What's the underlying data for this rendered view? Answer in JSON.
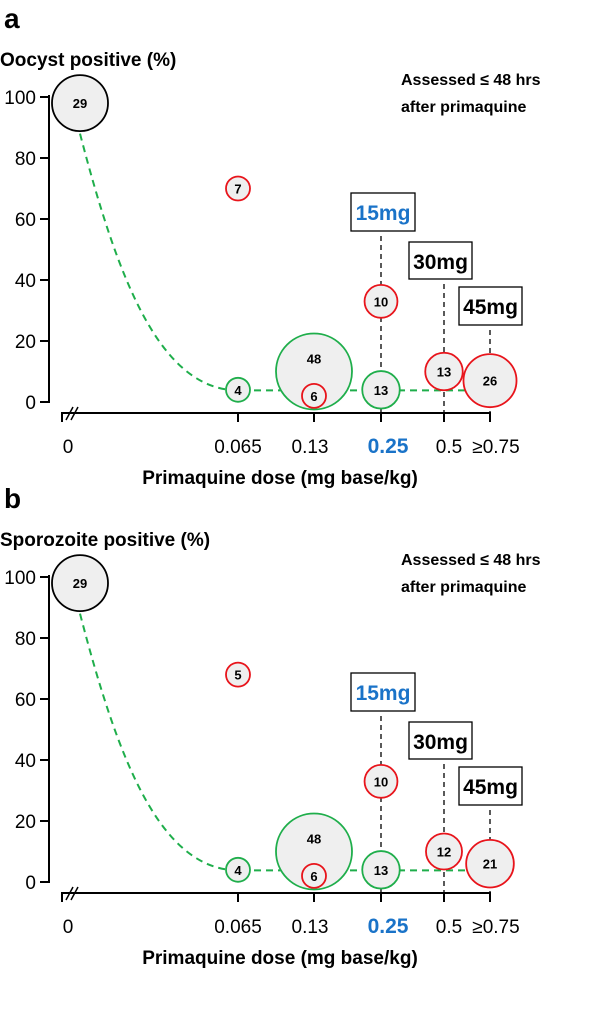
{
  "chart_data": [
    {
      "type": "scatter",
      "panel_label": "a",
      "ylabel": "Oocyst positive (%)",
      "xlabel": "Primaquine dose (mg base/kg)",
      "annotation": [
        "Assessed ≤ 48 hrs",
        "after primaquine"
      ],
      "ylim": [
        0,
        100
      ],
      "yticks": [
        "0",
        "20",
        "40",
        "60",
        "80",
        "100"
      ],
      "xticks": [
        "0",
        "0.065",
        "0.13",
        "0.25",
        "0.5",
        "≥0.75"
      ],
      "highlight_tick": "0.25",
      "dose_labels": [
        {
          "text": "15mg",
          "x": "0.25",
          "color": "#1a73c8"
        },
        {
          "text": "30mg",
          "x": "0.5",
          "color": "#000000"
        },
        {
          "text": "45mg",
          "x": "≥0.75",
          "color": "#000000"
        }
      ],
      "points": [
        {
          "x": "0",
          "y": 98,
          "n": "29",
          "group": "control"
        },
        {
          "x": "0.065",
          "y": 70,
          "n": "7",
          "group": "red"
        },
        {
          "x": "0.065",
          "y": 4,
          "n": "4",
          "group": "green"
        },
        {
          "x": "0.13",
          "y": 10,
          "n": "48",
          "group": "green"
        },
        {
          "x": "0.13",
          "y": 2,
          "n": "6",
          "group": "red"
        },
        {
          "x": "0.25",
          "y": 33,
          "n": "10",
          "group": "red"
        },
        {
          "x": "0.25",
          "y": 4,
          "n": "13",
          "group": "green"
        },
        {
          "x": "0.5",
          "y": 10,
          "n": "13",
          "group": "red"
        },
        {
          "x": "≥0.75",
          "y": 7,
          "n": "26",
          "group": "red"
        }
      ]
    },
    {
      "type": "scatter",
      "panel_label": "b",
      "ylabel": "Sporozoite positive (%)",
      "xlabel": "Primaquine dose (mg base/kg)",
      "annotation": [
        "Assessed ≤ 48 hrs",
        "after primaquine"
      ],
      "ylim": [
        0,
        100
      ],
      "yticks": [
        "0",
        "20",
        "40",
        "60",
        "80",
        "100"
      ],
      "xticks": [
        "0",
        "0.065",
        "0.13",
        "0.25",
        "0.5",
        "≥0.75"
      ],
      "highlight_tick": "0.25",
      "dose_labels": [
        {
          "text": "15mg",
          "x": "0.25",
          "color": "#1a73c8"
        },
        {
          "text": "30mg",
          "x": "0.5",
          "color": "#000000"
        },
        {
          "text": "45mg",
          "x": "≥0.75",
          "color": "#000000"
        }
      ],
      "points": [
        {
          "x": "0",
          "y": 98,
          "n": "29",
          "group": "control"
        },
        {
          "x": "0.065",
          "y": 68,
          "n": "5",
          "group": "red"
        },
        {
          "x": "0.065",
          "y": 4,
          "n": "4",
          "group": "green"
        },
        {
          "x": "0.13",
          "y": 10,
          "n": "48",
          "group": "green"
        },
        {
          "x": "0.13",
          "y": 2,
          "n": "6",
          "group": "red"
        },
        {
          "x": "0.25",
          "y": 33,
          "n": "10",
          "group": "red"
        },
        {
          "x": "0.25",
          "y": 4,
          "n": "13",
          "group": "green"
        },
        {
          "x": "0.5",
          "y": 10,
          "n": "12",
          "group": "red"
        },
        {
          "x": "≥0.75",
          "y": 6,
          "n": "21",
          "group": "red"
        }
      ]
    }
  ],
  "colors": {
    "control": "#000000",
    "red": "#e8141b",
    "green": "#1fae4b",
    "fill": "#efefef",
    "highlight": "#1a73c8"
  }
}
